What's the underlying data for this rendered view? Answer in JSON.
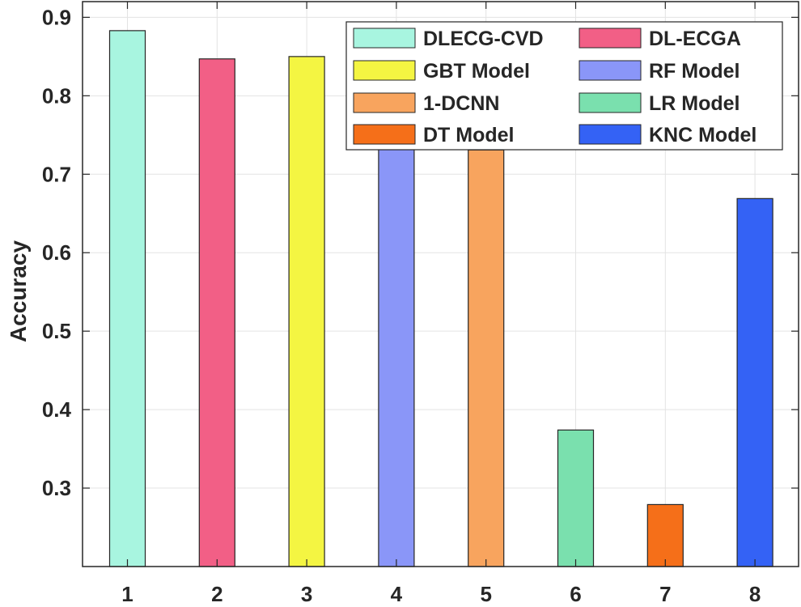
{
  "chart_data": {
    "type": "bar",
    "categories": [
      "1",
      "2",
      "3",
      "4",
      "5",
      "6",
      "7",
      "8"
    ],
    "values": [
      0.883,
      0.847,
      0.85,
      0.799,
      0.731,
      0.374,
      0.279,
      0.669
    ],
    "series_names": [
      "DLECG-CVD",
      "DL-ECGA",
      "GBT Model",
      "RF Model",
      "1-DCNN",
      "LR Model",
      "DT Model",
      "KNC Model"
    ],
    "colors": [
      "#a8f5e0",
      "#f25f86",
      "#f4f542",
      "#8a96f8",
      "#f8a45e",
      "#7ae0ae",
      "#f56f19",
      "#3462f5"
    ],
    "ylabel": "Accuracy",
    "xlabel": "",
    "ylim": [
      0.2,
      0.92
    ],
    "yticks": [
      "0.3",
      "0.4",
      "0.5",
      "0.6",
      "0.7",
      "0.8",
      "0.9"
    ],
    "grid": true,
    "legend_position": "top-right"
  }
}
